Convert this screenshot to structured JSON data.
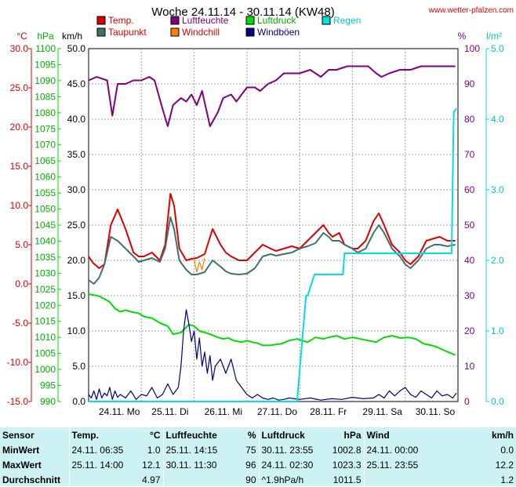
{
  "page": {
    "title": "Woche 24.11.14 - 30.11.14 (KW48)",
    "site": "www.wetter-pfalzen.com"
  },
  "chart_data": {
    "type": "line",
    "title": "Woche 24.11.14 - 30.11.14 (KW48)",
    "legend": [
      {
        "label": "Temp.",
        "color": "#dd0000"
      },
      {
        "label": "Taupunkt",
        "color": "#407070"
      },
      {
        "label": "Luftfeuchte",
        "color": "#800080"
      },
      {
        "label": "Windchill",
        "color": "#ff8000"
      },
      {
        "label": "Luftdruck",
        "color": "#00dd00"
      },
      {
        "label": "Windböen",
        "color": "#000080"
      },
      {
        "label": "Regen",
        "color": "#00e0e0"
      }
    ],
    "axes": {
      "temp_c": {
        "unit": "°C",
        "min": -15,
        "max": 30,
        "ticks": [
          "30.0",
          "25.0",
          "20.0",
          "15.0",
          "10.0",
          "5.0",
          "0.0",
          "-5.0",
          "-10.0",
          "-15.0"
        ],
        "color": "#dd0000"
      },
      "pressure_hpa": {
        "unit": "hPa",
        "min": 990,
        "max": 1100,
        "ticks": [
          "1100",
          "1095",
          "1090",
          "1085",
          "1080",
          "1075",
          "1070",
          "1065",
          "1060",
          "1055",
          "1050",
          "1045",
          "1040",
          "1035",
          "1030",
          "1025",
          "1020",
          "1015",
          "1010",
          "1005",
          "1000",
          "995",
          "990"
        ],
        "color": "#00b000"
      },
      "wind_kmh": {
        "unit": "km/h",
        "min": 0,
        "max": 50,
        "ticks": [
          "50.0",
          "45.0",
          "40.0",
          "35.0",
          "30.0",
          "25.0",
          "20.0",
          "15.0",
          "10.0",
          "5.0",
          "0.0"
        ],
        "color": "#000000"
      },
      "humidity_pct": {
        "unit": "%",
        "min": 0,
        "max": 100,
        "ticks": [
          "100",
          "90",
          "80",
          "70",
          "60",
          "50",
          "40",
          "30",
          "20",
          "10",
          "0"
        ],
        "color": "#800080"
      },
      "rain_lm2": {
        "unit": "l/m²",
        "min": 0,
        "max": 5,
        "ticks": [
          "5.0",
          "4.0",
          "3.0",
          "2.0",
          "1.0",
          "0.0"
        ],
        "color": "#00e0e0"
      },
      "x_days": [
        "24.11. Mo",
        "25.11. Di",
        "26.11. Mi",
        "27.11. Do",
        "28.11. Fr",
        "29.11. Sa",
        "30.11. So"
      ]
    },
    "x_range_days": [
      0,
      7
    ],
    "grid": true,
    "series": [
      {
        "name": "Temp.",
        "axis": "temp_c",
        "color": "#dd0000",
        "x": [
          0,
          0.08,
          0.2,
          0.3,
          0.42,
          0.55,
          0.7,
          0.85,
          0.95,
          1.05,
          1.2,
          1.35,
          1.45,
          1.55,
          1.62,
          1.72,
          1.85,
          1.95,
          2.05,
          2.2,
          2.35,
          2.5,
          2.6,
          2.7,
          2.85,
          3.0,
          3.15,
          3.3,
          3.45,
          3.55,
          3.7,
          3.85,
          4.0,
          4.15,
          4.3,
          4.45,
          4.55,
          4.62,
          4.75,
          4.85,
          5.0,
          5.1,
          5.25,
          5.4,
          5.5,
          5.6,
          5.75,
          5.9,
          6.0,
          6.1,
          6.25,
          6.4,
          6.55,
          6.65,
          6.8,
          6.95
        ],
        "y": [
          3.5,
          2.7,
          2.0,
          2.5,
          7.5,
          9.5,
          7.0,
          4.0,
          3.5,
          3.5,
          4.0,
          3.0,
          5.0,
          11.5,
          10.0,
          4.5,
          3.0,
          3.2,
          3.3,
          3.8,
          7.0,
          5.0,
          4.0,
          3.5,
          3.0,
          3.0,
          4.0,
          5.0,
          4.5,
          4.2,
          4.5,
          4.8,
          4.5,
          5.5,
          6.5,
          7.5,
          6.5,
          6.0,
          6.5,
          5.0,
          4.5,
          4.5,
          5.5,
          8.0,
          9.0,
          7.5,
          5.0,
          4.0,
          3.0,
          2.5,
          3.5,
          5.5,
          5.8,
          6.0,
          5.5,
          5.5
        ]
      },
      {
        "name": "Taupunkt",
        "axis": "temp_c",
        "color": "#407070",
        "x": [
          0,
          0.1,
          0.2,
          0.3,
          0.42,
          0.55,
          0.7,
          0.85,
          0.95,
          1.05,
          1.2,
          1.35,
          1.45,
          1.55,
          1.62,
          1.72,
          1.85,
          1.95,
          2.05,
          2.2,
          2.35,
          2.5,
          2.6,
          2.7,
          2.85,
          3.0,
          3.15,
          3.3,
          3.45,
          3.55,
          3.7,
          3.85,
          4.0,
          4.15,
          4.3,
          4.45,
          4.55,
          4.62,
          4.75,
          4.85,
          5.0,
          5.1,
          5.25,
          5.4,
          5.5,
          5.6,
          5.75,
          5.9,
          6.0,
          6.1,
          6.25,
          6.4,
          6.55,
          6.65,
          6.8,
          6.95
        ],
        "y": [
          0.5,
          0.0,
          0.8,
          2.5,
          6.0,
          5.5,
          4.5,
          3.5,
          2.8,
          3.0,
          3.3,
          2.8,
          4.5,
          8.5,
          7.0,
          3.0,
          1.8,
          1.2,
          1.2,
          1.5,
          3.0,
          2.2,
          1.6,
          1.3,
          1.2,
          1.3,
          2.0,
          3.5,
          3.8,
          3.6,
          3.8,
          4.0,
          4.5,
          4.8,
          5.2,
          6.5,
          6.0,
          5.5,
          5.5,
          5.0,
          4.5,
          4.0,
          4.5,
          6.5,
          7.5,
          6.5,
          4.5,
          3.5,
          2.5,
          2.0,
          3.0,
          4.5,
          5.0,
          5.0,
          4.8,
          5.0
        ]
      },
      {
        "name": "Windchill",
        "axis": "temp_c",
        "color": "#ff8000",
        "x": [
          2.0,
          2.05,
          2.1,
          2.15,
          2.2
        ],
        "y": [
          3.2,
          1.5,
          2.8,
          1.8,
          3.3
        ]
      },
      {
        "name": "Luftfeuchte",
        "axis": "humidity_pct",
        "color": "#800080",
        "x": [
          0,
          0.15,
          0.35,
          0.45,
          0.55,
          0.7,
          0.85,
          1.0,
          1.15,
          1.25,
          1.4,
          1.5,
          1.6,
          1.75,
          1.85,
          1.95,
          2.05,
          2.15,
          2.3,
          2.45,
          2.55,
          2.7,
          2.8,
          3.0,
          3.15,
          3.25,
          3.4,
          3.55,
          3.7,
          3.85,
          4.0,
          4.2,
          4.4,
          4.55,
          4.7,
          4.9,
          5.1,
          5.3,
          5.45,
          5.55,
          5.7,
          5.9,
          6.1,
          6.3,
          6.5,
          6.7,
          6.95
        ],
        "x_note": "",
        "y": [
          91,
          92,
          91,
          81,
          90,
          90,
          91,
          91,
          92,
          91,
          83,
          78,
          84,
          86,
          85,
          87,
          84,
          88,
          78,
          82,
          86,
          87,
          85,
          89,
          89,
          88,
          90,
          91,
          93,
          93,
          93,
          94,
          92,
          94,
          94,
          95,
          95,
          95,
          93,
          92,
          93,
          94,
          94,
          95,
          95,
          95,
          95
        ]
      },
      {
        "name": "Luftdruck",
        "axis": "pressure_hpa",
        "color": "#00dd00",
        "x": [
          0,
          0.1,
          0.2,
          0.3,
          0.4,
          0.5,
          0.6,
          0.7,
          0.8,
          0.95,
          1.05,
          1.2,
          1.35,
          1.5,
          1.6,
          1.75,
          1.9,
          2.0,
          2.1,
          2.2,
          2.3,
          2.45,
          2.55,
          2.65,
          2.75,
          2.9,
          3.0,
          3.1,
          3.2,
          3.3,
          3.45,
          3.55,
          3.65,
          3.8,
          3.95,
          4.05,
          4.15,
          4.3,
          4.45,
          4.55,
          4.7,
          4.85,
          5.0,
          5.15,
          5.3,
          5.45,
          5.6,
          5.75,
          5.9,
          6.05,
          6.2,
          6.35,
          6.5,
          6.6,
          6.8,
          6.95
        ],
        "y": [
          1023.5,
          1023.2,
          1022.8,
          1022.0,
          1021.0,
          1019.0,
          1018.0,
          1018.5,
          1018.0,
          1017.5,
          1016.5,
          1016.0,
          1014.5,
          1013.5,
          1011.0,
          1011.5,
          1014.0,
          1013.5,
          1012.0,
          1011.5,
          1011.0,
          1010.0,
          1009.5,
          1009.8,
          1009.0,
          1008.5,
          1009.0,
          1008.5,
          1008.2,
          1007.5,
          1007.5,
          1007.8,
          1008.0,
          1009.0,
          1009.5,
          1009.0,
          1008.5,
          1010.0,
          1009.5,
          1010.0,
          1010.5,
          1009.5,
          1010.0,
          1009.5,
          1009.0,
          1008.5,
          1010.0,
          1010.5,
          1009.8,
          1010.0,
          1009.5,
          1008.0,
          1007.5,
          1007.0,
          1005.5,
          1004.5
        ]
      },
      {
        "name": "Windböen",
        "axis": "wind_kmh",
        "color": "#000080",
        "x": [
          0,
          0.05,
          0.1,
          0.15,
          0.2,
          0.25,
          0.3,
          0.35,
          0.4,
          0.45,
          0.5,
          0.55,
          0.6,
          0.7,
          0.8,
          0.9,
          1.0,
          1.1,
          1.2,
          1.3,
          1.4,
          1.5,
          1.6,
          1.7,
          1.75,
          1.8,
          1.85,
          1.9,
          1.95,
          2.0,
          2.05,
          2.1,
          2.15,
          2.2,
          2.25,
          2.3,
          2.35,
          2.4,
          2.5,
          2.6,
          2.7,
          2.8,
          2.9,
          3.0,
          3.1,
          3.2,
          3.3,
          3.4,
          3.5,
          3.6,
          3.7,
          3.8,
          4.0,
          4.2,
          4.4,
          4.6,
          4.8,
          5.0,
          5.2,
          5.4,
          5.5,
          5.6,
          5.7,
          5.8,
          5.9,
          6.0,
          6.1,
          6.2,
          6.3,
          6.4,
          6.5,
          6.6,
          6.7,
          6.8,
          6.9,
          6.97
        ],
        "y": [
          1.0,
          0.5,
          1.5,
          0.3,
          1.8,
          0.5,
          1.2,
          0.8,
          2.0,
          0.3,
          1.5,
          0.6,
          1.0,
          0.5,
          1.5,
          0.3,
          1.0,
          0.8,
          2.0,
          0.5,
          1.0,
          2.5,
          1.0,
          2.0,
          5.0,
          10.0,
          13.0,
          11.0,
          8.5,
          10.0,
          6.0,
          9.0,
          5.0,
          7.0,
          4.0,
          6.5,
          3.0,
          5.0,
          6.0,
          4.0,
          6.0,
          3.0,
          2.0,
          1.0,
          0.5,
          1.0,
          0.5,
          0.3,
          0.5,
          0.2,
          0.3,
          0.5,
          0.3,
          0.5,
          0.2,
          0.4,
          0.3,
          0.6,
          0.4,
          0.5,
          1.0,
          0.5,
          1.5,
          0.8,
          1.5,
          2.0,
          1.0,
          0.6,
          1.5,
          1.0,
          0.5,
          1.5,
          0.8,
          1.0,
          0.5,
          1.2
        ]
      },
      {
        "name": "Regen",
        "axis": "rain_lm2",
        "color": "#00e0e0",
        "x": [
          0,
          3.95,
          4.12,
          4.15,
          4.28,
          4.3,
          4.82,
          4.85,
          6.85,
          6.88,
          6.92,
          6.97
        ],
        "y": [
          0,
          0,
          1.5,
          1.5,
          1.8,
          1.8,
          1.8,
          2.1,
          2.1,
          2.1,
          4.1,
          4.15
        ]
      }
    ]
  },
  "stats": {
    "headers": {
      "sensor": "Sensor",
      "temp": "Temp.",
      "temp_unit": "°C",
      "hum": "Luftfeuchte",
      "hum_unit": "%",
      "press": "Luftdruck",
      "press_unit": "hPa",
      "wind": "Wind",
      "wind_unit": "km/h"
    },
    "rows": [
      {
        "label": "MinWert",
        "temp_time": "24.11.  06:35",
        "temp_val": "1.0",
        "hum_time": "25.11.  14:15",
        "hum_val": "75",
        "press_time": "30.11.  23:55",
        "press_val": "1002.8",
        "wind_time": "24.11.  00:00",
        "wind_val": "0.0"
      },
      {
        "label": "MaxWert",
        "temp_time": "25.11.  14:00",
        "temp_val": "12.1",
        "hum_time": "30.11.  11:30",
        "hum_val": "96",
        "press_time": "24.11.  02:30",
        "press_val": "1023.3",
        "wind_time": "25.11.  23:55",
        "wind_val": "12.2"
      },
      {
        "label": "Durchschnitt",
        "temp_time": "",
        "temp_val": "4.97",
        "hum_time": "",
        "hum_val": "90",
        "press_time": "^1.9hPa/h",
        "press_val": "1011.5",
        "wind_time": "",
        "wind_val": "1.2"
      }
    ]
  }
}
